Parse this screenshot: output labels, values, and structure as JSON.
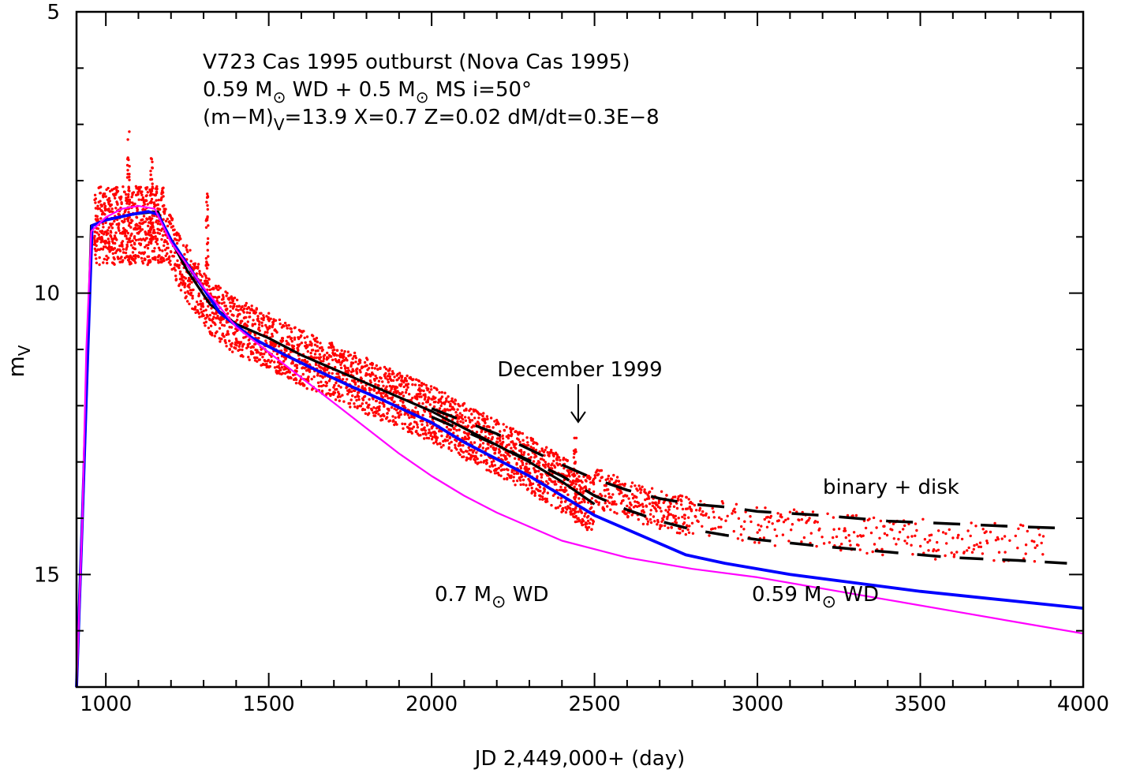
{
  "chart_data": {
    "type": "line",
    "xlabel": "JD 2,449,000+ (day)",
    "ylabel": {
      "main": "m",
      "sub": "V"
    },
    "xlim": [
      910,
      4000
    ],
    "ylim": [
      17,
      5
    ],
    "y_inverted": true,
    "grid": false,
    "x_ticks": [
      1000,
      1500,
      2000,
      2500,
      3000,
      3500,
      4000
    ],
    "y_ticks": [
      5,
      10,
      15
    ],
    "title_lines": [
      "V723 Cas 1995 outburst (Nova Cas 1995)",
      {
        "parts": [
          "0.59 M",
          "⊙",
          " WD + 0.5 M",
          "⊙",
          " MS  i=50°"
        ]
      },
      {
        "parts": [
          "(m−M)",
          "V",
          "=13.9  X=0.7  Z=0.02  dM/dt=0.3E−8"
        ]
      }
    ],
    "annotations": {
      "december": "December 1999",
      "december_x": 2450,
      "binary_disk": "binary + disk",
      "wd07": {
        "prefix": "0.7 M",
        "sun": "⊙",
        "suffix": " WD"
      },
      "wd059": {
        "prefix": "0.59 M",
        "sun": "⊙",
        "suffix": " WD"
      }
    },
    "colors": {
      "observed": "#ff0000",
      "wd059": "#0000ff",
      "wd07": "#ff00ff",
      "binary": "#000000"
    },
    "series": [
      {
        "style": "solid-black",
        "x": [
          910,
          928,
          942,
          955,
          1000,
          1080,
          1160,
          1180,
          1250,
          1320,
          1400,
          1500,
          1600,
          1700,
          1800,
          1900,
          2000,
          2100,
          2200,
          2300,
          2400,
          2500
        ],
        "y": [
          17,
          14,
          11.5,
          8.8,
          8.7,
          8.6,
          8.55,
          8.85,
          9.6,
          10.2,
          10.55,
          10.8,
          11.1,
          11.35,
          11.6,
          11.85,
          12.1,
          12.4,
          12.7,
          13.0,
          13.35,
          13.75
        ]
      },
      {
        "style": "blue",
        "x": [
          910,
          928,
          942,
          958,
          1000,
          1080,
          1130,
          1160,
          1200,
          1280,
          1350,
          1450,
          1550,
          1650,
          1750,
          1850,
          2000,
          2100,
          2200,
          2300,
          2400,
          2500,
          2600,
          2700,
          2780,
          2900,
          3100,
          3300,
          3500,
          3700,
          4000
        ],
        "y": [
          17,
          14,
          11.5,
          8.8,
          8.7,
          8.6,
          8.55,
          8.6,
          9.05,
          9.75,
          10.35,
          10.8,
          11.1,
          11.38,
          11.65,
          11.9,
          12.3,
          12.65,
          12.95,
          13.25,
          13.6,
          13.95,
          14.2,
          14.45,
          14.65,
          14.8,
          15.0,
          15.15,
          15.3,
          15.42,
          15.6
        ]
      },
      {
        "style": "magenta",
        "x": [
          910,
          928,
          940,
          955,
          1000,
          1050,
          1100,
          1150,
          1200,
          1300,
          1400,
          1500,
          1600,
          1700,
          1800,
          1900,
          2000,
          2100,
          2200,
          2300,
          2400,
          2500,
          2600,
          2700,
          2800,
          3000,
          3200,
          3400,
          3600,
          3800,
          4000
        ],
        "y": [
          17,
          14,
          11.0,
          8.9,
          8.65,
          8.5,
          8.45,
          8.5,
          9.1,
          9.9,
          10.6,
          11.05,
          11.5,
          11.95,
          12.4,
          12.85,
          13.25,
          13.6,
          13.9,
          14.15,
          14.4,
          14.55,
          14.7,
          14.8,
          14.9,
          15.05,
          15.25,
          15.45,
          15.65,
          15.85,
          16.05
        ]
      },
      {
        "style": "dashed-black-upper",
        "x": [
          2000,
          2200,
          2400,
          2500,
          2600,
          2700,
          2800,
          2900,
          3000,
          3200,
          3400,
          3600,
          3800,
          3950
        ],
        "y": [
          12.05,
          12.5,
          13.05,
          13.3,
          13.5,
          13.65,
          13.75,
          13.8,
          13.88,
          13.95,
          14.05,
          14.1,
          14.15,
          14.18
        ]
      },
      {
        "style": "dashed-black-lower",
        "x": [
          2000,
          2200,
          2400,
          2500,
          2600,
          2700,
          2800,
          2900,
          3000,
          3200,
          3400,
          3600,
          3800,
          3950
        ],
        "y": [
          12.2,
          12.7,
          13.25,
          13.6,
          13.85,
          14.05,
          14.2,
          14.3,
          14.38,
          14.5,
          14.6,
          14.7,
          14.75,
          14.8
        ]
      }
    ]
  }
}
